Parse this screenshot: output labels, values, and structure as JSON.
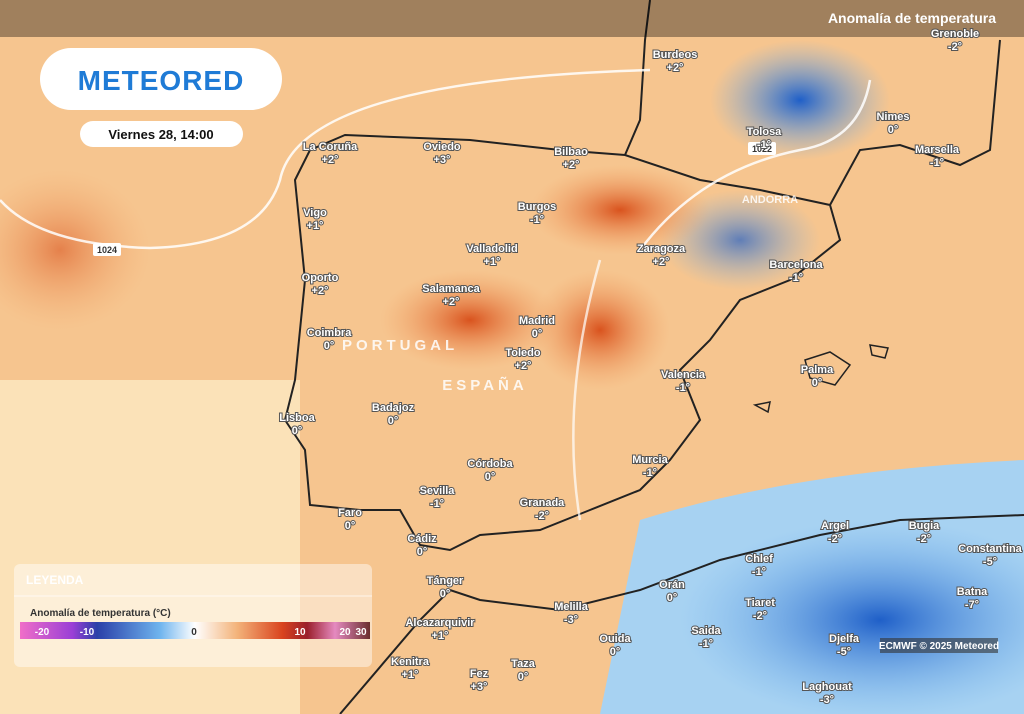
{
  "header": {
    "title": "Anomalía de temperatura"
  },
  "logo": "METEORED",
  "date": "Viernes 28, 14:00",
  "countries": [
    "PORTUGAL",
    "ESPAÑA",
    "ANDORRA"
  ],
  "isobars": [
    "1024",
    "1022"
  ],
  "cities": [
    {
      "name": "Burdeos",
      "value": "+2°"
    },
    {
      "name": "Grenoble",
      "value": "-2°"
    },
    {
      "name": "Nimes",
      "value": "0°"
    },
    {
      "name": "Tolosa",
      "value": "-1°"
    },
    {
      "name": "Marsella",
      "value": "-1°"
    },
    {
      "name": "La Coruña",
      "value": "+2°"
    },
    {
      "name": "Oviedo",
      "value": "+3°"
    },
    {
      "name": "Bilbao",
      "value": "+2°"
    },
    {
      "name": "Vigo",
      "value": "+1°"
    },
    {
      "name": "Burgos",
      "value": "-1°"
    },
    {
      "name": "Valladolid",
      "value": "+1°"
    },
    {
      "name": "Zaragoza",
      "value": "+2°"
    },
    {
      "name": "Barcelona",
      "value": "-1°"
    },
    {
      "name": "Oporto",
      "value": "+2°"
    },
    {
      "name": "Salamanca",
      "value": "+2°"
    },
    {
      "name": "Madrid",
      "value": "0°"
    },
    {
      "name": "Coimbra",
      "value": "0°"
    },
    {
      "name": "Toledo",
      "value": "+2°"
    },
    {
      "name": "Palma",
      "value": "0°"
    },
    {
      "name": "Valencia",
      "value": "-1°"
    },
    {
      "name": "Badajoz",
      "value": "0°"
    },
    {
      "name": "Lisboa",
      "value": "0°"
    },
    {
      "name": "Córdoba",
      "value": "0°"
    },
    {
      "name": "Murcia",
      "value": "-1°"
    },
    {
      "name": "Sevilla",
      "value": "-1°"
    },
    {
      "name": "Granada",
      "value": "-2°"
    },
    {
      "name": "Faro",
      "value": "0°"
    },
    {
      "name": "Cádiz",
      "value": "0°"
    },
    {
      "name": "Argel",
      "value": "-2°"
    },
    {
      "name": "Bugia",
      "value": "-2°"
    },
    {
      "name": "Constantina",
      "value": "-5°"
    },
    {
      "name": "Chlef",
      "value": "-1°"
    },
    {
      "name": "Tánger",
      "value": "0°"
    },
    {
      "name": "Orán",
      "value": "0°"
    },
    {
      "name": "Melilla",
      "value": "-3°"
    },
    {
      "name": "Tiaret",
      "value": "-2°"
    },
    {
      "name": "Batna",
      "value": "-7°"
    },
    {
      "name": "Alcazarquivir",
      "value": "+1°"
    },
    {
      "name": "Saida",
      "value": "-1°"
    },
    {
      "name": "Ouida",
      "value": "0°"
    },
    {
      "name": "Djelfa",
      "value": "-5°"
    },
    {
      "name": "Kenitra",
      "value": "+1°"
    },
    {
      "name": "Taza",
      "value": "0°"
    },
    {
      "name": "Fez",
      "value": "+3°"
    },
    {
      "name": "Laghouat",
      "value": "-3°"
    }
  ],
  "legend": {
    "title": "LEYENDA",
    "subtitle": "Anomalía de temperatura (°C)",
    "ticks": [
      -20,
      -10,
      0,
      10,
      20,
      30
    ]
  },
  "credit": "ECMWF © 2025 Meteored"
}
